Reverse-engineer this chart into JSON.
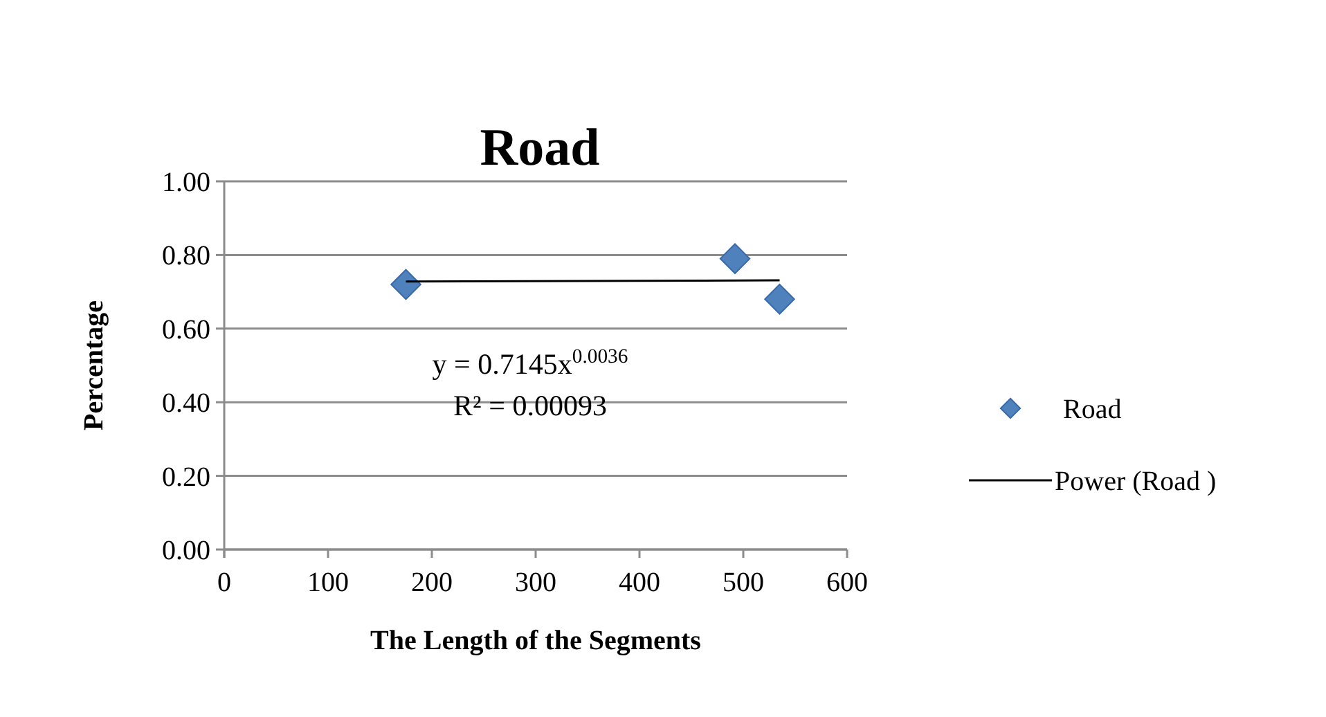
{
  "chart_data": {
    "type": "scatter",
    "title": "Road",
    "xlabel": "The Length of the Segments",
    "ylabel": "Percentage",
    "xlim": [
      0,
      600
    ],
    "xticks": [
      0,
      100,
      200,
      300,
      400,
      500,
      600
    ],
    "ylim": [
      0,
      1
    ],
    "yticks": [
      {
        "value": 0,
        "label": "0.00"
      },
      {
        "value": 0.2,
        "label": "0.20"
      },
      {
        "value": 0.4,
        "label": "0.40"
      },
      {
        "value": 0.6,
        "label": "0.60"
      },
      {
        "value": 0.8,
        "label": "0.80"
      },
      {
        "value": 1,
        "label": "1.00"
      }
    ],
    "grid": "y",
    "legend": "right",
    "marker": "diamond",
    "series": [
      {
        "name": "Road",
        "color": "#4f81bd",
        "x": [
          175,
          492,
          535
        ],
        "values": [
          0.72,
          0.79,
          0.68
        ]
      },
      {
        "name": "Power (Road )",
        "type": "line",
        "color": "#000000",
        "x": [
          175,
          535
        ],
        "values": [
          0.728,
          0.731
        ],
        "marker": "none"
      }
    ],
    "annotations": [
      "y = 0.7145x$^{0.0036}$",
      "R² = 0.00093"
    ]
  }
}
